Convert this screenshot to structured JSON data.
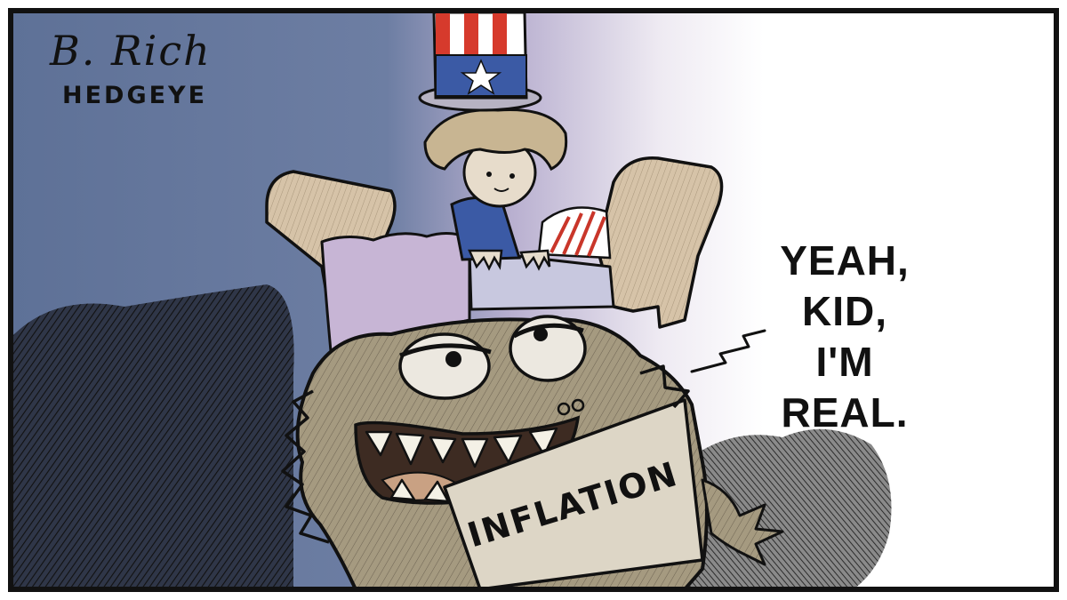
{
  "cartoon": {
    "signature": "B. Rich",
    "publisher": "HEDGEYE",
    "label": "INFLATION",
    "speech_lines": [
      "YEAH,",
      "KID,",
      "I'M",
      "REAL."
    ]
  },
  "colors": {
    "sky_left": "#5e7197",
    "sky_mid": "#b3abcd",
    "sky_right": "#ffffff",
    "monster": "#a59a80",
    "bed_wood": "#d6c3a8",
    "blanket": "#c7b5d5",
    "hat_red": "#d63a2c",
    "hat_blue": "#3b5aa5"
  }
}
